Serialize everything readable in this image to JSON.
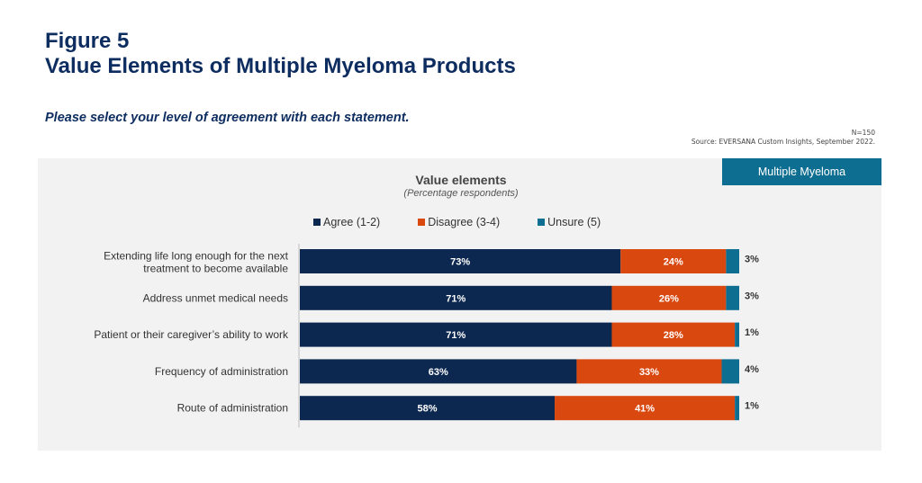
{
  "header": {
    "figure_label": "Figure 5",
    "title": "Value Elements of Multiple Myeloma Products",
    "question": "Please select your level of agreement with each statement.",
    "n_note": "N=150",
    "source": "Source: EVERSANA Custom Insights, September 2022."
  },
  "badge": "Multiple Myeloma",
  "chart_data": {
    "type": "bar",
    "orientation": "horizontal",
    "stacked": true,
    "title": "Value elements",
    "subtitle": "(Percentage respondents)",
    "legend_position": "top",
    "xlim": [
      0,
      100
    ],
    "categories": [
      [
        "Extending life long enough for the next",
        "treatment to become available"
      ],
      [
        "Address unmet medical needs"
      ],
      [
        "Patient or their caregiver’s ability to work"
      ],
      [
        "Frequency of administration"
      ],
      [
        "Route of administration"
      ]
    ],
    "series": [
      {
        "name": "Agree (1-2)",
        "color": "#0d2850",
        "values": [
          73,
          71,
          71,
          63,
          58
        ]
      },
      {
        "name": "Disagree (3-4)",
        "color": "#d9480f",
        "values": [
          24,
          26,
          28,
          33,
          41
        ]
      },
      {
        "name": "Unsure (5)",
        "color": "#0e6e91",
        "values": [
          3,
          3,
          1,
          4,
          1
        ]
      }
    ],
    "value_labels": [
      [
        "73%",
        "71%",
        "71%",
        "63%",
        "58%"
      ],
      [
        "24%",
        "26%",
        "28%",
        "33%",
        "41%"
      ],
      [
        "3%",
        "3%",
        "1%",
        "4%",
        "1%"
      ]
    ]
  }
}
